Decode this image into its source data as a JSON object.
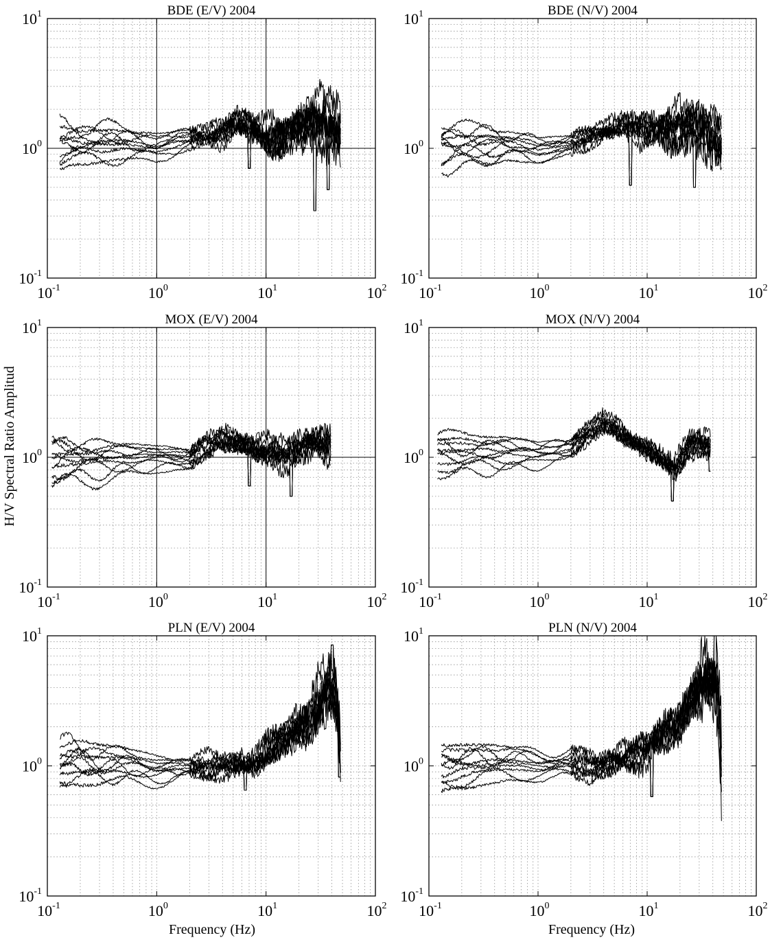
{
  "figure": {
    "ylabel": "H/V Spectral Ratio Amplitud",
    "xlabel": "Frequency (Hz)"
  },
  "chart_data": [
    {
      "type": "line",
      "title": "BDE (E/V) 2004",
      "xscale": "log",
      "yscale": "log",
      "xlim": [
        0.1,
        100
      ],
      "ylim": [
        0.1,
        10
      ],
      "xticks": [
        "10^-1",
        "10^0",
        "10^1",
        "10^2"
      ],
      "yticks": [
        "10^-1",
        "10^0",
        "10^1"
      ],
      "grid": true,
      "reference_lines": {
        "x": [
          1,
          10
        ],
        "y": [
          1
        ]
      },
      "n_traces": 10,
      "x_range": [
        0.13,
        48
      ],
      "trend": [
        [
          0.13,
          1.0
        ],
        [
          0.5,
          1.08
        ],
        [
          1.0,
          1.0
        ],
        [
          2.0,
          1.15
        ],
        [
          5.0,
          1.45
        ],
        [
          10.0,
          1.25
        ],
        [
          20.0,
          1.35
        ],
        [
          35.0,
          1.6
        ],
        [
          48.0,
          1.3
        ]
      ],
      "spread": [
        [
          0.13,
          0.18
        ],
        [
          0.5,
          0.14
        ],
        [
          1.0,
          0.08
        ],
        [
          3.0,
          0.12
        ],
        [
          8.0,
          0.25
        ],
        [
          20.0,
          0.35
        ],
        [
          40.0,
          0.45
        ]
      ],
      "trace_offsets": [
        -0.2,
        -0.15,
        -0.06,
        0.0,
        0.03,
        0.05,
        0.08,
        0.13,
        0.18,
        0.23
      ],
      "dips": [
        [
          7.0,
          0.7
        ],
        [
          28.0,
          0.33
        ],
        [
          37.0,
          0.48
        ]
      ]
    },
    {
      "type": "line",
      "title": "BDE (N/V) 2004",
      "xscale": "log",
      "yscale": "log",
      "xlim": [
        0.1,
        100
      ],
      "ylim": [
        0.1,
        10
      ],
      "xticks": [
        "10^-1",
        "10^0",
        "10^1",
        "10^2"
      ],
      "yticks": [
        "10^-1",
        "10^0",
        "10^1"
      ],
      "grid": true,
      "reference_lines": {
        "x": [],
        "y": []
      },
      "n_traces": 10,
      "x_range": [
        0.13,
        48
      ],
      "trend": [
        [
          0.13,
          1.0
        ],
        [
          0.5,
          1.05
        ],
        [
          1.0,
          0.95
        ],
        [
          2.0,
          1.05
        ],
        [
          6.0,
          1.5
        ],
        [
          10.0,
          1.3
        ],
        [
          25.0,
          1.5
        ],
        [
          48.0,
          1.1
        ]
      ],
      "spread": [
        [
          0.13,
          0.16
        ],
        [
          0.5,
          0.12
        ],
        [
          1.0,
          0.08
        ],
        [
          4.0,
          0.12
        ],
        [
          10.0,
          0.22
        ],
        [
          30.0,
          0.35
        ]
      ],
      "trace_offsets": [
        -0.2,
        -0.14,
        -0.07,
        -0.02,
        0.02,
        0.05,
        0.09,
        0.12,
        0.17,
        0.22
      ],
      "dips": [
        [
          7.0,
          0.52
        ],
        [
          27.0,
          0.5
        ]
      ]
    },
    {
      "type": "line",
      "title": "MOX (E/V) 2004",
      "xscale": "log",
      "yscale": "log",
      "xlim": [
        0.1,
        100
      ],
      "ylim": [
        0.1,
        10
      ],
      "xticks": [
        "10^-1",
        "10^0",
        "10^1",
        "10^2"
      ],
      "yticks": [
        "10^-1",
        "10^0",
        "10^1"
      ],
      "grid": true,
      "reference_lines": {
        "x": [
          1,
          10
        ],
        "y": [
          1
        ]
      },
      "n_traces": 10,
      "x_range": [
        0.11,
        39
      ],
      "trend": [
        [
          0.11,
          0.92
        ],
        [
          0.5,
          1.0
        ],
        [
          1.0,
          1.0
        ],
        [
          2.0,
          1.0
        ],
        [
          4.0,
          1.4
        ],
        [
          8.0,
          1.15
        ],
        [
          15.0,
          1.05
        ],
        [
          25.0,
          1.3
        ],
        [
          39.0,
          1.2
        ]
      ],
      "spread": [
        [
          0.11,
          0.2
        ],
        [
          0.5,
          0.1
        ],
        [
          1.0,
          0.07
        ],
        [
          4.0,
          0.14
        ],
        [
          10.0,
          0.18
        ],
        [
          30.0,
          0.22
        ]
      ],
      "trace_offsets": [
        -0.25,
        -0.17,
        -0.1,
        -0.04,
        0.0,
        0.04,
        0.07,
        0.1,
        0.14,
        0.19
      ],
      "dips": [
        [
          7.0,
          0.6
        ],
        [
          17.0,
          0.5
        ]
      ]
    },
    {
      "type": "line",
      "title": "MOX (N/V) 2004",
      "xscale": "log",
      "yscale": "log",
      "xlim": [
        0.1,
        100
      ],
      "ylim": [
        0.1,
        10
      ],
      "xticks": [
        "10^-1",
        "10^0",
        "10^1",
        "10^2"
      ],
      "yticks": [
        "10^-1",
        "10^0",
        "10^1"
      ],
      "grid": true,
      "reference_lines": {
        "x": [],
        "y": []
      },
      "n_traces": 10,
      "x_range": [
        0.12,
        38
      ],
      "trend": [
        [
          0.12,
          1.05
        ],
        [
          0.5,
          1.1
        ],
        [
          1.0,
          1.05
        ],
        [
          2.0,
          1.2
        ],
        [
          4.0,
          1.8
        ],
        [
          7.0,
          1.4
        ],
        [
          12.0,
          1.0
        ],
        [
          18.0,
          0.8
        ],
        [
          25.0,
          1.3
        ],
        [
          38.0,
          1.2
        ]
      ],
      "spread": [
        [
          0.12,
          0.16
        ],
        [
          0.5,
          0.1
        ],
        [
          1.0,
          0.06
        ],
        [
          4.0,
          0.12
        ],
        [
          15.0,
          0.18
        ],
        [
          30.0,
          0.18
        ]
      ],
      "trace_offsets": [
        -0.22,
        -0.15,
        -0.09,
        -0.04,
        0.0,
        0.04,
        0.07,
        0.11,
        0.15,
        0.2
      ],
      "dips": [
        [
          17.0,
          0.46
        ],
        [
          38.0,
          0.78
        ]
      ]
    },
    {
      "type": "line",
      "title": "PLN (E/V) 2004",
      "xscale": "log",
      "yscale": "log",
      "xlim": [
        0.1,
        100
      ],
      "ylim": [
        0.1,
        10
      ],
      "xticks": [
        "10^-1",
        "10^0",
        "10^1",
        "10^2"
      ],
      "yticks": [
        "10^-1",
        "10^0",
        "10^1"
      ],
      "grid": true,
      "reference_lines": {
        "x": [],
        "y": []
      },
      "n_traces": 10,
      "x_range": [
        0.13,
        48
      ],
      "trend": [
        [
          0.13,
          1.0
        ],
        [
          0.5,
          1.0
        ],
        [
          1.0,
          0.9
        ],
        [
          2.0,
          0.95
        ],
        [
          5.0,
          1.0
        ],
        [
          8.0,
          1.05
        ],
        [
          15.0,
          1.5
        ],
        [
          25.0,
          2.4
        ],
        [
          38.0,
          3.8
        ],
        [
          44.0,
          2.5
        ],
        [
          48.0,
          1.0
        ]
      ],
      "spread": [
        [
          0.13,
          0.22
        ],
        [
          0.5,
          0.12
        ],
        [
          1.0,
          0.08
        ],
        [
          5.0,
          0.15
        ],
        [
          20.0,
          0.3
        ],
        [
          40.0,
          0.5
        ]
      ],
      "trace_offsets": [
        -0.2,
        -0.13,
        -0.07,
        -0.02,
        0.02,
        0.06,
        0.1,
        0.14,
        0.19,
        0.25
      ],
      "dips": [
        [
          6.5,
          0.65
        ],
        [
          40.0,
          8.5
        ],
        [
          47.0,
          0.82
        ]
      ]
    },
    {
      "type": "line",
      "title": "PLN (N/V) 2004",
      "xscale": "log",
      "yscale": "log",
      "xlim": [
        0.1,
        100
      ],
      "ylim": [
        0.1,
        10
      ],
      "xticks": [
        "10^-1",
        "10^0",
        "10^1",
        "10^2"
      ],
      "yticks": [
        "10^-1",
        "10^0",
        "10^1"
      ],
      "grid": true,
      "reference_lines": {
        "x": [],
        "y": []
      },
      "n_traces": 10,
      "x_range": [
        0.13,
        48
      ],
      "trend": [
        [
          0.13,
          0.95
        ],
        [
          0.5,
          1.05
        ],
        [
          1.0,
          1.0
        ],
        [
          2.0,
          1.0
        ],
        [
          5.0,
          1.05
        ],
        [
          10.0,
          1.3
        ],
        [
          20.0,
          2.2
        ],
        [
          35.0,
          4.5
        ],
        [
          44.0,
          4.0
        ],
        [
          48.0,
          1.0
        ]
      ],
      "spread": [
        [
          0.13,
          0.2
        ],
        [
          0.5,
          0.12
        ],
        [
          1.0,
          0.08
        ],
        [
          5.0,
          0.15
        ],
        [
          20.0,
          0.35
        ],
        [
          40.0,
          0.6
        ]
      ],
      "trace_offsets": [
        -0.24,
        -0.15,
        -0.08,
        -0.03,
        0.01,
        0.05,
        0.09,
        0.13,
        0.18,
        0.24
      ],
      "dips": [
        [
          11.0,
          0.58
        ],
        [
          42.0,
          10.0
        ],
        [
          48.0,
          0.72
        ]
      ]
    }
  ]
}
